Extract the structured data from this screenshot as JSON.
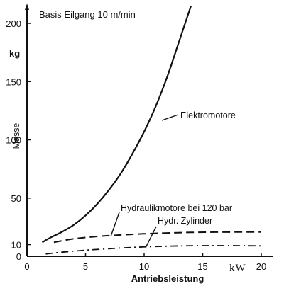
{
  "chart_data": {
    "type": "line",
    "title": "Basis  Eilgang 10 m/min",
    "xlabel": "Antriebsleistung",
    "xunit": "kW",
    "ylabel": "Masse",
    "yunit": "kg",
    "xlim": [
      0,
      20.5
    ],
    "ylim": [
      0,
      215
    ],
    "xticks": [
      0,
      5,
      10,
      15,
      20
    ],
    "yticks": [
      0,
      10,
      50,
      100,
      150,
      200
    ],
    "grid": false,
    "line_color": "#111111",
    "series": [
      {
        "name": "Elektromotore",
        "style": "solid",
        "x": [
          1.3,
          2.0,
          3.0,
          4.0,
          5.0,
          6.0,
          7.0,
          8.0,
          9.0,
          10.0,
          11.0,
          12.0,
          13.0,
          14.0
        ],
        "values": [
          12,
          16,
          21,
          27,
          35,
          45,
          57,
          71,
          88,
          107,
          129,
          155,
          185,
          215
        ]
      },
      {
        "name": "Hydraulikmotore bei 120 bar",
        "style": "dashed",
        "x": [
          2.3,
          4,
          6,
          8,
          10,
          12,
          14,
          16,
          18,
          20
        ],
        "values": [
          12,
          15,
          17,
          18.3,
          19.3,
          20,
          20.5,
          20.7,
          20.8,
          20.8
        ]
      },
      {
        "name": "Hydr. Zylinder",
        "style": "dashdot",
        "x": [
          1.6,
          3,
          5,
          7,
          9,
          11,
          13,
          15,
          17,
          19,
          20
        ],
        "values": [
          2,
          3.5,
          5.2,
          6.5,
          7.6,
          8.4,
          8.9,
          9.1,
          9.1,
          9.0,
          8.9
        ]
      }
    ]
  }
}
